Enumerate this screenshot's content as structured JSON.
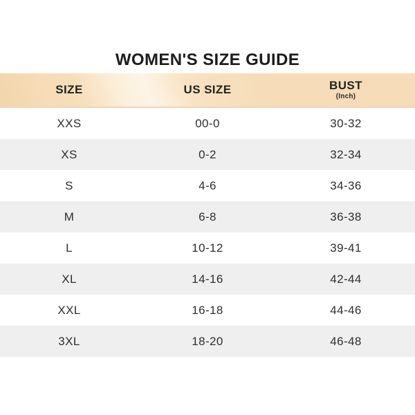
{
  "title": "WOMEN'S SIZE GUIDE",
  "header": {
    "col1": "SIZE",
    "col2": "US SIZE",
    "col3": "BUST",
    "col3_unit": "(Inch)"
  },
  "chart_data": {
    "type": "table",
    "title": "WOMEN'S SIZE GUIDE",
    "columns": [
      "SIZE",
      "US SIZE",
      "BUST (Inch)"
    ],
    "rows": [
      [
        "XXS",
        "00-0",
        "30-32"
      ],
      [
        "XS",
        "0-2",
        "32-34"
      ],
      [
        "S",
        "4-6",
        "34-36"
      ],
      [
        "M",
        "6-8",
        "36-38"
      ],
      [
        "L",
        "10-12",
        "39-41"
      ],
      [
        "XL",
        "14-16",
        "42-44"
      ],
      [
        "XXL",
        "16-18",
        "44-46"
      ],
      [
        "3XL",
        "18-20",
        "46-48"
      ]
    ],
    "layout_hints": {
      "header_background": "peach diagonal gradient",
      "row_striping": "white / light gray alternating",
      "column_alignment": "center"
    }
  },
  "colors": {
    "header_peach": "#f6dcb8",
    "header_peach_light": "#fdf4e6",
    "header_bottom_edge": "#f2d3bd",
    "row_alt_gray": "#efefef",
    "text_dark": "#2e2e2e",
    "title_black": "#1c1c1c",
    "background": "#ffffff"
  }
}
